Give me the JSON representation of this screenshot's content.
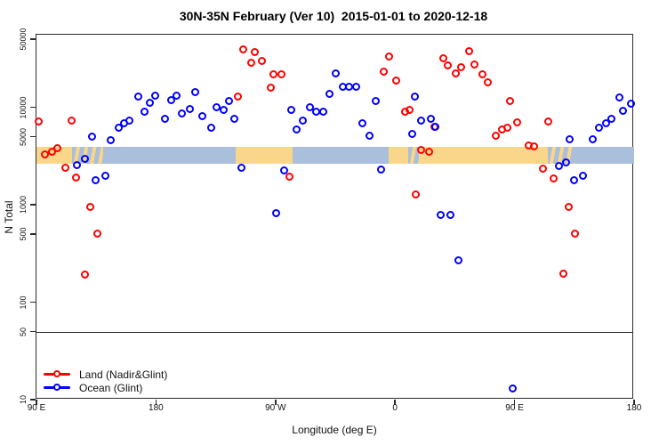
{
  "title": "30N-35N February (Ver 10)  2015-01-01 to 2020-12-18",
  "colors": {
    "land_series": "#ff0000",
    "ocean_series": "#0000ff",
    "land_band": "#f9d689",
    "ocean_band": "#a9bfdb",
    "axis": "#2b2b2b"
  },
  "chart_data": {
    "type": "scatter",
    "title": "30N-35N February (Ver 10)  2015-01-01 to 2020-12-18",
    "xlabel": "Longitude (deg E)",
    "ylabel": "N Total",
    "x_axis_note": "longitude wraps: 90E to 180 to 90W to 0 to 90E to 180",
    "x_range_plot": [
      90,
      540
    ],
    "y_scale": "log10",
    "y_range": [
      10,
      50000
    ],
    "grid": false,
    "separator_value": 50,
    "x_ticks": [
      {
        "pos": 90,
        "label": "90 E"
      },
      {
        "pos": 180,
        "label": "180"
      },
      {
        "pos": 270,
        "label": "90 W"
      },
      {
        "pos": 360,
        "label": "0"
      },
      {
        "pos": 450,
        "label": "90 E"
      },
      {
        "pos": 540,
        "label": "180"
      }
    ],
    "y_ticks": [
      10,
      50,
      100,
      500,
      1000,
      5000,
      10000,
      50000
    ],
    "land_ocean_band": {
      "value_top": 3900,
      "value_bottom": 2600,
      "segments": [
        {
          "from": 90,
          "to": 117,
          "kind": "land"
        },
        {
          "from": 117,
          "to": 140,
          "kind": "mixed"
        },
        {
          "from": 140,
          "to": 240,
          "kind": "ocean"
        },
        {
          "from": 240,
          "to": 283,
          "kind": "land"
        },
        {
          "from": 283,
          "to": 355,
          "kind": "ocean"
        },
        {
          "from": 355,
          "to": 370,
          "kind": "land"
        },
        {
          "from": 370,
          "to": 378,
          "kind": "mixed"
        },
        {
          "from": 378,
          "to": 475,
          "kind": "land"
        },
        {
          "from": 475,
          "to": 495,
          "kind": "mixed"
        },
        {
          "from": 495,
          "to": 540,
          "kind": "ocean"
        }
      ]
    },
    "legend": {
      "position": "bottom-left"
    },
    "series": [
      {
        "name": "Land (Nadir&Glint)",
        "color": "#ff0000",
        "marker": "open-circle",
        "points": [
          [
            92,
            7000
          ],
          [
            97,
            3250
          ],
          [
            102,
            3460
          ],
          [
            106,
            3750
          ],
          [
            112,
            2370
          ],
          [
            117,
            7200
          ],
          [
            120,
            1880
          ],
          [
            127,
            190
          ],
          [
            131,
            940
          ],
          [
            136,
            500
          ],
          [
            242,
            12700
          ],
          [
            246,
            39000
          ],
          [
            252,
            28300
          ],
          [
            255,
            36500
          ],
          [
            260,
            29600
          ],
          [
            267,
            15700
          ],
          [
            269,
            21600
          ],
          [
            275,
            21600
          ],
          [
            281,
            1920
          ],
          [
            352,
            23000
          ],
          [
            356,
            32800
          ],
          [
            361,
            18600
          ],
          [
            368,
            8900
          ],
          [
            371,
            9300
          ],
          [
            376,
            1260
          ],
          [
            380,
            3600
          ],
          [
            386,
            3460
          ],
          [
            390,
            6240
          ],
          [
            397,
            31500
          ],
          [
            400,
            26600
          ],
          [
            406,
            22000
          ],
          [
            410,
            25500
          ],
          [
            416,
            37200
          ],
          [
            420,
            27200
          ],
          [
            426,
            21600
          ],
          [
            430,
            17900
          ],
          [
            436,
            5060
          ],
          [
            441,
            5860
          ],
          [
            445,
            6100
          ],
          [
            447,
            11500
          ],
          [
            452,
            6900
          ],
          [
            461,
            4000
          ],
          [
            465,
            3900
          ],
          [
            472,
            2320
          ],
          [
            476,
            7100
          ],
          [
            480,
            1840
          ],
          [
            487,
            195
          ],
          [
            491,
            940
          ],
          [
            496,
            500
          ]
        ]
      },
      {
        "name": "Ocean (Glint)",
        "color": "#0000ff",
        "marker": "open-circle",
        "points": [
          [
            121,
            2520
          ],
          [
            127,
            2920
          ],
          [
            132,
            4950
          ],
          [
            135,
            1770
          ],
          [
            142,
            1960
          ],
          [
            146,
            4550
          ],
          [
            152,
            6100
          ],
          [
            156,
            6780
          ],
          [
            160,
            7200
          ],
          [
            167,
            12700
          ],
          [
            172,
            8900
          ],
          [
            176,
            11000
          ],
          [
            180,
            13000
          ],
          [
            187,
            7530
          ],
          [
            192,
            11700
          ],
          [
            196,
            13000
          ],
          [
            200,
            8550
          ],
          [
            206,
            9490
          ],
          [
            210,
            14200
          ],
          [
            215,
            8030
          ],
          [
            222,
            6100
          ],
          [
            226,
            9890
          ],
          [
            231,
            9300
          ],
          [
            235,
            11500
          ],
          [
            239,
            7530
          ],
          [
            245,
            2370
          ],
          [
            271,
            810
          ],
          [
            277,
            2220
          ],
          [
            282,
            9300
          ],
          [
            286,
            5860
          ],
          [
            291,
            7200
          ],
          [
            296,
            9890
          ],
          [
            301,
            8900
          ],
          [
            306,
            8900
          ],
          [
            311,
            13500
          ],
          [
            316,
            22000
          ],
          [
            321,
            16100
          ],
          [
            326,
            16100
          ],
          [
            331,
            16100
          ],
          [
            336,
            6780
          ],
          [
            341,
            5060
          ],
          [
            346,
            11500
          ],
          [
            350,
            2270
          ],
          [
            373,
            5270
          ],
          [
            375,
            12700
          ],
          [
            380,
            7200
          ],
          [
            387,
            7530
          ],
          [
            391,
            6240
          ],
          [
            395,
            780
          ],
          [
            402,
            770
          ],
          [
            408,
            266
          ],
          [
            449,
            13
          ],
          [
            484,
            2450
          ],
          [
            489,
            2670
          ],
          [
            492,
            4640
          ],
          [
            495,
            1770
          ],
          [
            502,
            1960
          ],
          [
            509,
            4600
          ],
          [
            514,
            6100
          ],
          [
            519,
            6780
          ],
          [
            523,
            7530
          ],
          [
            529,
            12400
          ],
          [
            532,
            9100
          ],
          [
            538,
            10800
          ]
        ]
      }
    ]
  }
}
